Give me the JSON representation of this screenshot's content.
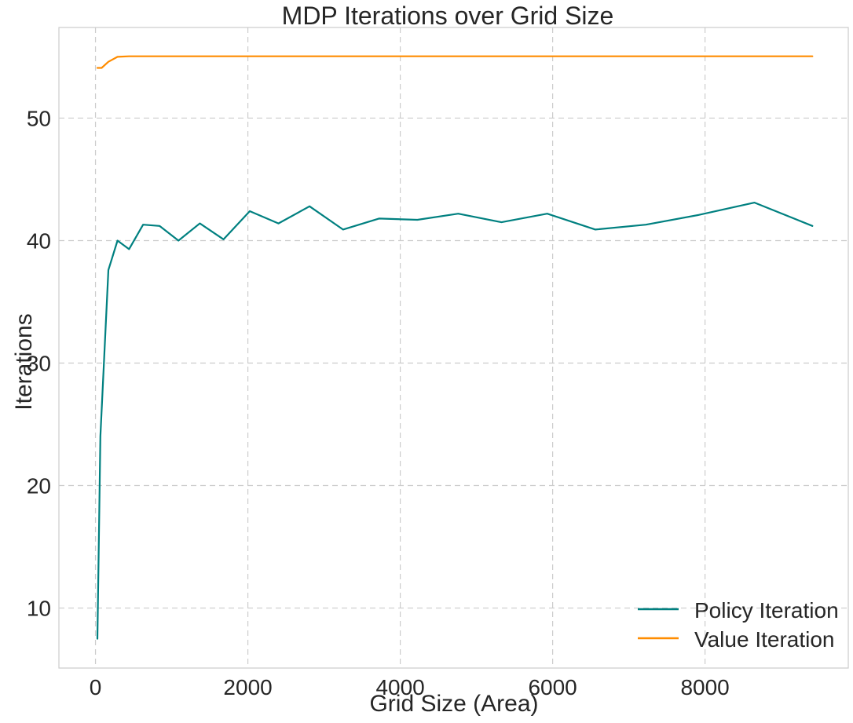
{
  "chart_data": {
    "type": "line",
    "title": "MDP Iterations over Grid Size",
    "xlabel": "Grid Size (Area)",
    "ylabel": "Iterations",
    "xlim": [
      -480,
      9880
    ],
    "ylim": [
      5.1,
      57.4
    ],
    "xticks": [
      0,
      2000,
      4000,
      6000,
      8000
    ],
    "yticks": [
      10,
      20,
      30,
      40,
      50
    ],
    "xtick_labels": [
      "0",
      "2000",
      "4000",
      "6000",
      "8000"
    ],
    "ytick_labels": [
      "10",
      "20",
      "30",
      "40",
      "50"
    ],
    "grid": true,
    "legend_position": "bottom-right",
    "series": [
      {
        "name": "Policy Iteration",
        "color": "#008080",
        "x": [
          25,
          64,
          169,
          289,
          441,
          625,
          841,
          1089,
          1369,
          1681,
          2025,
          2401,
          2809,
          3249,
          3721,
          4225,
          4761,
          5329,
          5929,
          6561,
          7225,
          7921,
          8649,
          9409
        ],
        "y": [
          7.5,
          24,
          37.6,
          40,
          39.3,
          41.3,
          41.2,
          40,
          41.4,
          40.1,
          42.4,
          41.4,
          42.8,
          40.9,
          41.8,
          41.7,
          42.2,
          41.5,
          42.2,
          40.9,
          41.3,
          42.1,
          43.1,
          41.2
        ]
      },
      {
        "name": "Value Iteration",
        "color": "#FF8C00",
        "x": [
          25,
          81,
          169,
          289,
          441,
          625,
          1089,
          2025,
          4225,
          6561,
          9409
        ],
        "y": [
          54.1,
          54.1,
          54.6,
          55,
          55.05,
          55.05,
          55.05,
          55.05,
          55.05,
          55.05,
          55.05
        ]
      }
    ]
  }
}
